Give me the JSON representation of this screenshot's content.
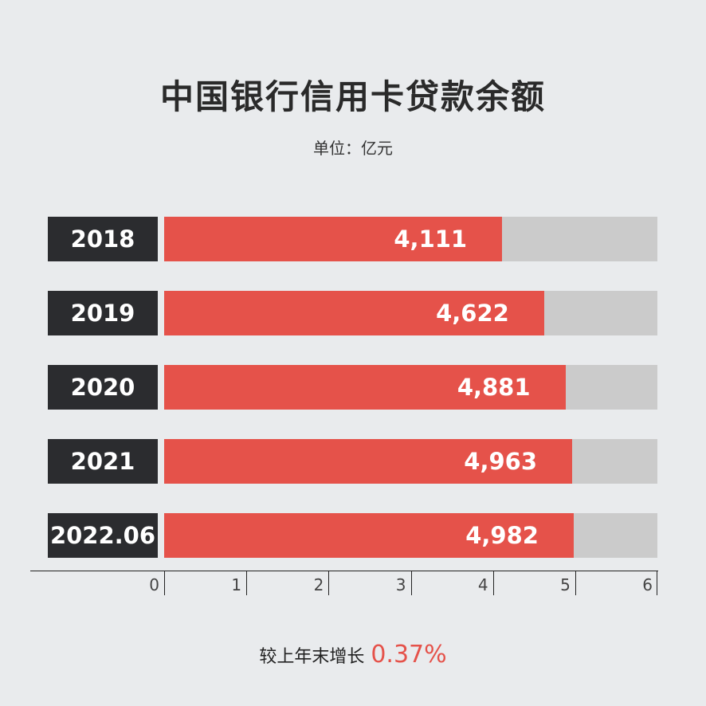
{
  "title": "中国银行信用卡贷款余额",
  "subtitle": "单位：亿元",
  "footer": {
    "text": "较上年末增长",
    "value": "0.37%"
  },
  "colors": {
    "bar": "#e5524a",
    "track": "#cbcbcb",
    "category_box": "#2b2c2f",
    "background": "#e9ebed"
  },
  "chart_data": {
    "type": "bar",
    "orientation": "horizontal",
    "categories": [
      "2018",
      "2019",
      "2020",
      "2021",
      "2022.06"
    ],
    "values": [
      4111,
      4622,
      4881,
      4963,
      4982
    ],
    "value_labels": [
      "4,111",
      "4,622",
      "4,881",
      "4,963",
      "4,982"
    ],
    "axis_max": 6000,
    "x_ticks": [
      "0",
      "1",
      "2",
      "3",
      "4",
      "5",
      "6"
    ],
    "grid": false
  }
}
